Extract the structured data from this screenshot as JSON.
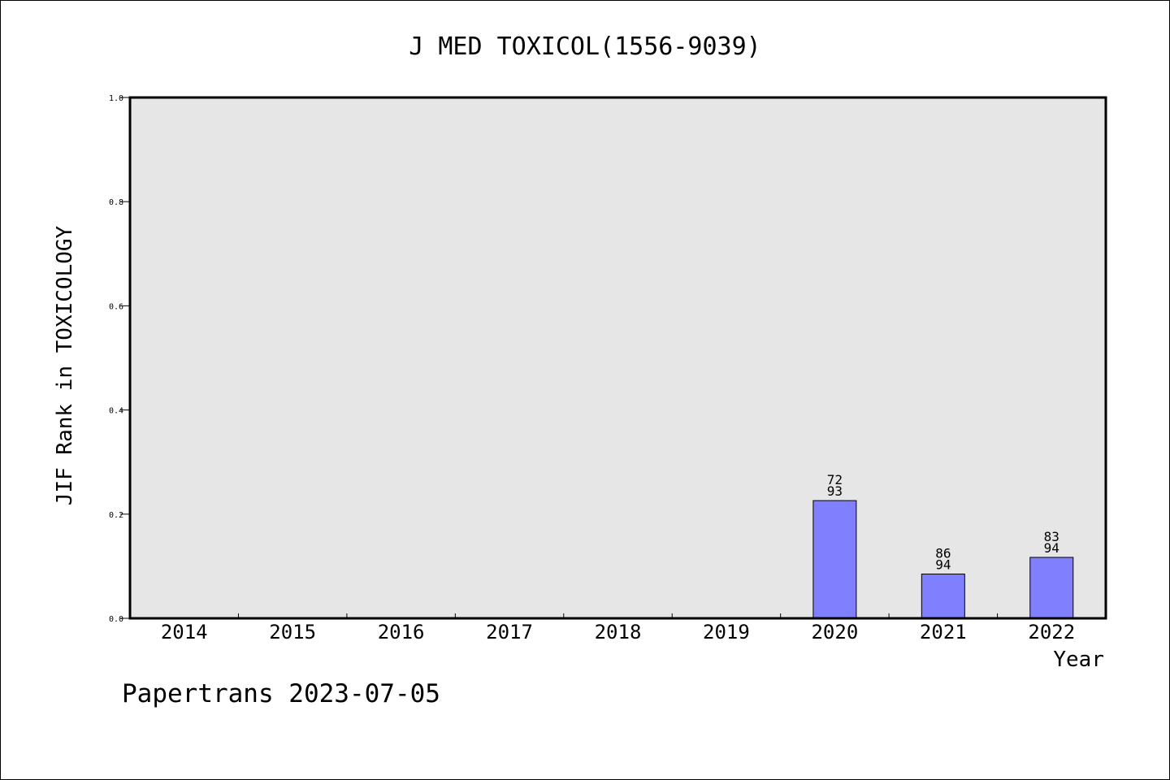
{
  "chart_data": {
    "type": "bar",
    "title": "J MED TOXICOL(1556-9039)",
    "xlabel": "Year",
    "ylabel": "JIF Rank in TOXICOLOGY",
    "ylim": [
      0,
      1.0
    ],
    "yticks": [
      "0.0",
      "0.2",
      "0.4",
      "0.6",
      "0.8",
      "1.0"
    ],
    "categories": [
      "2014",
      "2015",
      "2016",
      "2017",
      "2018",
      "2019",
      "2020",
      "2021",
      "2022"
    ],
    "values": [
      null,
      null,
      null,
      null,
      null,
      null,
      0.226,
      0.085,
      0.117
    ],
    "rank_labels": [
      null,
      null,
      null,
      null,
      null,
      null,
      [
        "72",
        "93"
      ],
      [
        "86",
        "94"
      ],
      [
        "83",
        "94"
      ]
    ],
    "bar_color": "#8080ff",
    "plot_background": "#e6e6e6",
    "grid": false
  },
  "footer": "Papertrans 2023-07-05"
}
